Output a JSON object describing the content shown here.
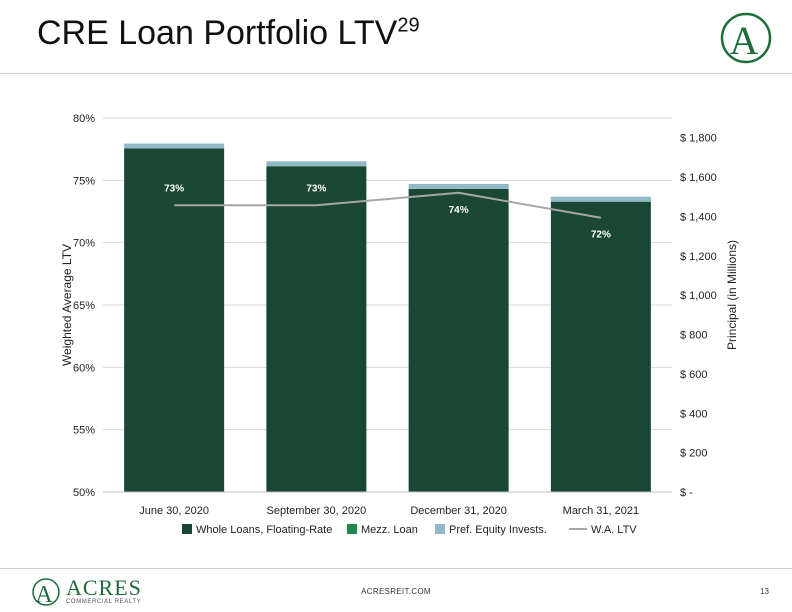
{
  "slide": {
    "title": "CRE Loan Portfolio LTV",
    "title_superscript": "29",
    "footer_url": "ACRESREIT.COM",
    "page_number": "13",
    "brand_name": "ACRES",
    "brand_sub": "COMMERCIAL REALTY",
    "logo_letter": "A"
  },
  "colors": {
    "whole_loans": "#1a4733",
    "mezz_loan": "#1f8a4c",
    "pref_equity": "#92b9c8",
    "wa_ltv": "#a6a6a6",
    "brand_green": "#1e6b3c"
  },
  "chart_data": {
    "type": "bar",
    "stacked": true,
    "categories": [
      "June 30, 2020",
      "September 30, 2020",
      "December 31, 2020",
      "March 31, 2021"
    ],
    "series": [
      {
        "name": "Whole Loans, Floating-Rate",
        "axis": "right",
        "values": [
          1745,
          1655,
          1540,
          1475
        ]
      },
      {
        "name": "Mezz. Loan",
        "axis": "right",
        "values": [
          0,
          0,
          0,
          0
        ]
      },
      {
        "name": "Pref. Equity Invests.",
        "axis": "right",
        "values": [
          25,
          25,
          25,
          25
        ]
      },
      {
        "name": "W.A. LTV",
        "type": "line",
        "axis": "left",
        "values": [
          0.73,
          0.73,
          0.74,
          0.72
        ],
        "labels": [
          "73%",
          "73%",
          "74%",
          "72%"
        ]
      }
    ],
    "ylabel": "Weighted Average LTV",
    "y2label": "Principal (in Millions)",
    "ylim": [
      0.5,
      0.8
    ],
    "yticks": [
      "50%",
      "55%",
      "60%",
      "65%",
      "70%",
      "75%",
      "80%"
    ],
    "y2lim": [
      0,
      1900
    ],
    "y2ticks": [
      "$ -",
      "$ 200",
      "$ 400",
      "$ 600",
      "$ 800",
      "$ 1,000",
      "$ 1,200",
      "$ 1,400",
      "$ 1,600",
      "$ 1,800"
    ],
    "grid": true,
    "legend": "bottom"
  }
}
